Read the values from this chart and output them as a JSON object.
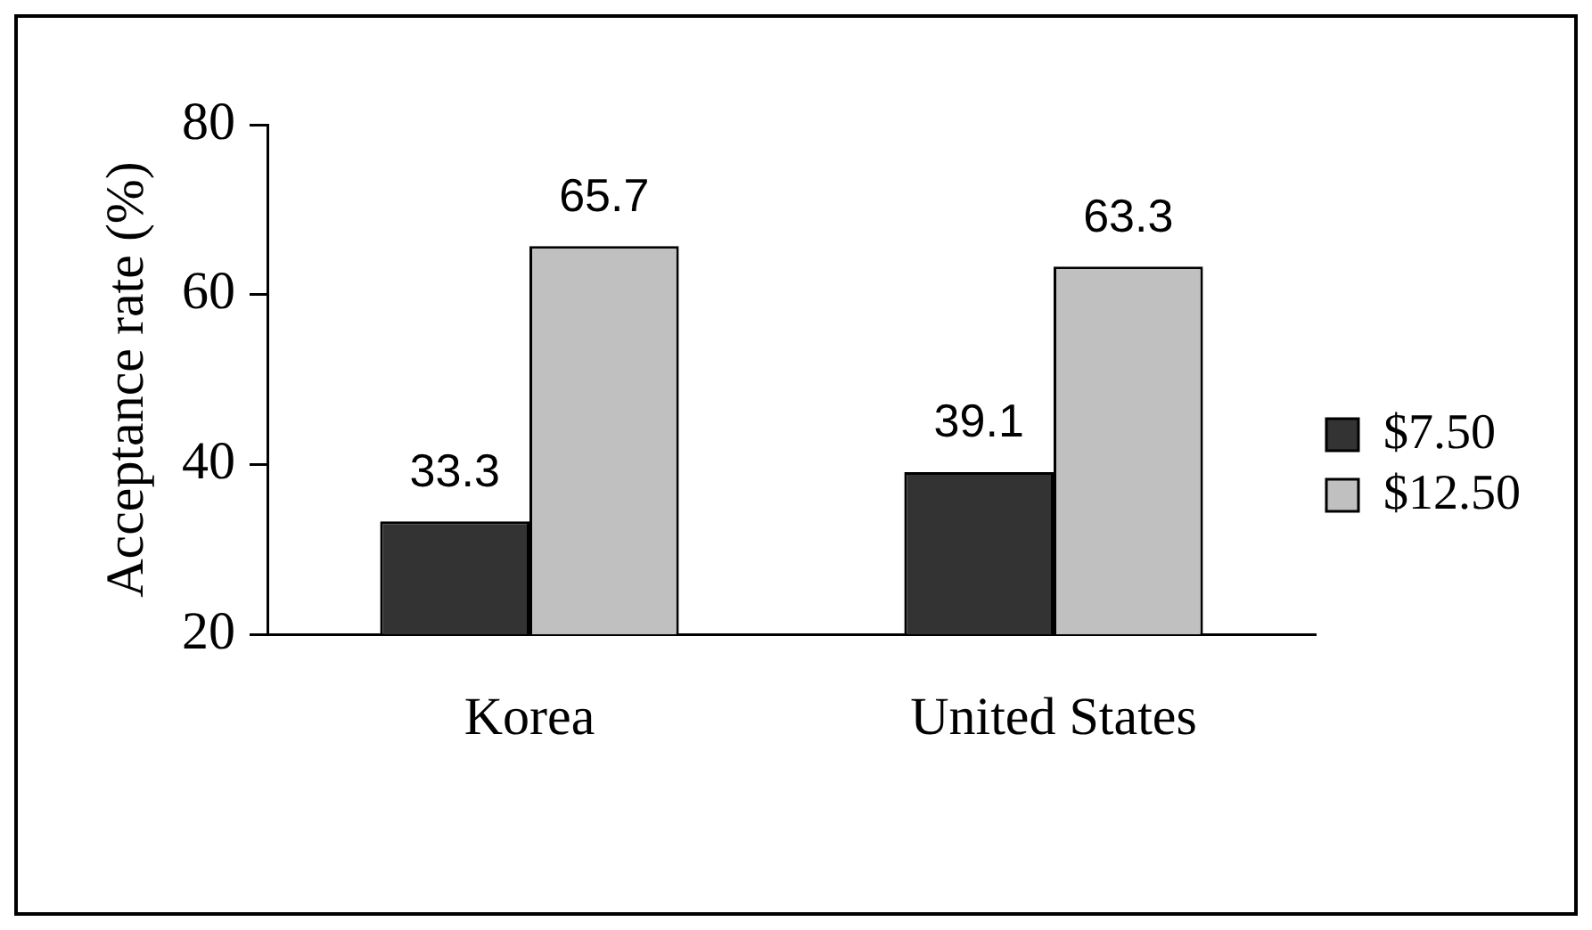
{
  "chart_data": {
    "type": "bar",
    "ylabel": "Acceptance rate (%)",
    "categories": [
      "Korea",
      "United States"
    ],
    "series": [
      {
        "name": "$7.50",
        "color": "#333333",
        "values": [
          33.3,
          39.1
        ]
      },
      {
        "name": "$12.50",
        "color": "#c0c0c0",
        "values": [
          65.7,
          63.3
        ]
      }
    ],
    "ylim": [
      20,
      80
    ],
    "yticks": [
      20,
      40,
      60,
      80
    ],
    "grid": false,
    "legend": "right",
    "data_labels": true
  }
}
